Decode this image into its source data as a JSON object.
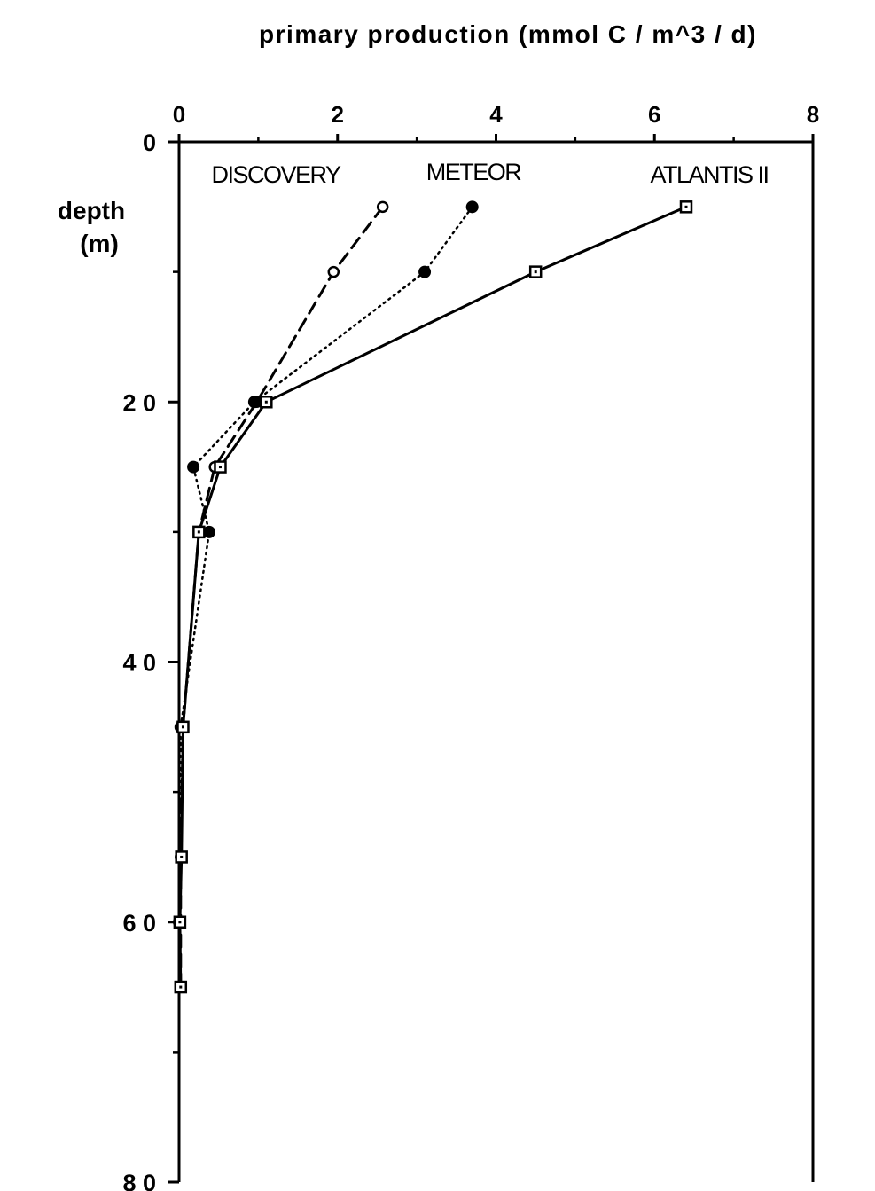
{
  "chart_data": {
    "type": "line",
    "title": "primary production (mmol C / m^3 / d)",
    "xlabel": "primary production (mmol C / m^3 / d)",
    "ylabel": [
      "depth",
      "(m)"
    ],
    "xlim": [
      0,
      8
    ],
    "ylim": [
      0,
      80
    ],
    "y_inverted": true,
    "x_axis_position": "top",
    "x_ticks": [
      "0",
      "2",
      "4",
      "6",
      "8"
    ],
    "y_ticks": [
      "0",
      "2 0",
      "4 0",
      "6 0",
      "8 0"
    ],
    "grid": false,
    "series": [
      {
        "name": "DISCOVERY",
        "line_style": "dashed",
        "marker": "open-circle",
        "color": "#000000",
        "x": [
          2.57,
          1.95,
          0.98,
          0.45,
          0.25,
          0.05,
          0.02,
          0.02
        ],
        "y": [
          5,
          10,
          20,
          25,
          30,
          45,
          55,
          65
        ]
      },
      {
        "name": "METEOR",
        "line_style": "dotted",
        "marker": "filled-circle",
        "color": "#000000",
        "x": [
          3.7,
          3.1,
          0.95,
          0.18,
          0.38,
          0.02,
          0.0
        ],
        "y": [
          5,
          10,
          20,
          25,
          30,
          45,
          60
        ]
      },
      {
        "name": "ATLANTIS II",
        "line_style": "solid",
        "marker": "open-square",
        "color": "#000000",
        "x": [
          6.4,
          4.5,
          1.1,
          0.52,
          0.25,
          0.05,
          0.03,
          0.01,
          0.02
        ],
        "y": [
          5,
          10,
          20,
          25,
          30,
          45,
          55,
          60,
          65
        ]
      }
    ]
  }
}
